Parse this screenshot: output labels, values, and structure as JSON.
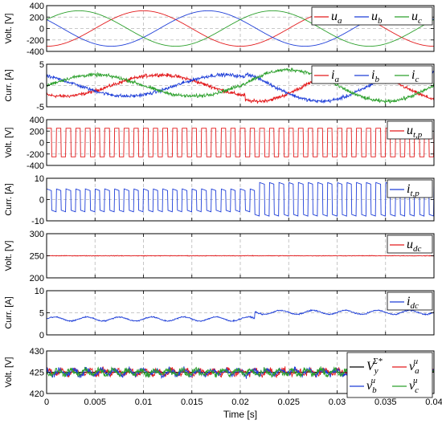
{
  "chart_data": [
    {
      "type": "line",
      "ylabel": "Volt. [V]",
      "ylim": [
        -400,
        400
      ],
      "yticks": [
        -400,
        -200,
        0,
        200,
        400
      ],
      "xlim": [
        0,
        0.04
      ],
      "grid": true,
      "legend": "top-right",
      "series": [
        {
          "name": "u",
          "sub": "a",
          "color": "#e31a1c",
          "kind": "sine",
          "amplitude": 310,
          "frequency_hz": 50,
          "phase_deg": -90
        },
        {
          "name": "u",
          "sub": "b",
          "color": "#1f3fd8",
          "kind": "sine",
          "amplitude": 310,
          "frequency_hz": 50,
          "phase_deg": 150
        },
        {
          "name": "u",
          "sub": "c",
          "color": "#2ca02c",
          "kind": "sine",
          "amplitude": 310,
          "frequency_hz": 50,
          "phase_deg": 30
        }
      ]
    },
    {
      "type": "line",
      "ylabel": "Curr. [A]",
      "ylim": [
        -5,
        5
      ],
      "yticks": [
        -5,
        0,
        5
      ],
      "xlim": [
        0,
        0.04
      ],
      "grid": true,
      "legend": "top-right",
      "step_time": 0.0205,
      "series": [
        {
          "name": "i",
          "sub": "a",
          "color": "#e31a1c",
          "kind": "sine",
          "amplitude_before": 2.5,
          "amplitude_after": 3.7,
          "frequency_hz": 50,
          "phase_deg": -120,
          "noise": 0.35
        },
        {
          "name": "i",
          "sub": "b",
          "color": "#1f3fd8",
          "kind": "sine",
          "amplitude_before": 2.5,
          "amplitude_after": 3.7,
          "frequency_hz": 50,
          "phase_deg": 120,
          "noise": 0.35
        },
        {
          "name": "i",
          "sub": "c",
          "color": "#2ca02c",
          "kind": "sine",
          "amplitude_before": 2.5,
          "amplitude_after": 3.7,
          "frequency_hz": 50,
          "phase_deg": 0,
          "noise": 0.35
        }
      ]
    },
    {
      "type": "line",
      "ylabel": "Volt. [V]",
      "ylim": [
        -400,
        400
      ],
      "yticks": [
        -400,
        -200,
        0,
        200,
        400
      ],
      "xlim": [
        0,
        0.04
      ],
      "grid": true,
      "legend": "top-right",
      "series": [
        {
          "name": "u",
          "sub": "t,p",
          "color": "#e31a1c",
          "kind": "square",
          "high": 250,
          "low": -250,
          "period": 0.001
        }
      ]
    },
    {
      "type": "line",
      "ylabel": "Curr. [A]",
      "ylim": [
        -10,
        10
      ],
      "yticks": [
        -10,
        0,
        10
      ],
      "xlim": [
        0,
        0.04
      ],
      "grid": true,
      "legend": "top-right",
      "step_time": 0.0215,
      "series": [
        {
          "name": "i",
          "sub": "t,p",
          "color": "#1f3fd8",
          "kind": "square",
          "period": 0.001,
          "high_before": 5,
          "low_before": -5,
          "high_after": 8,
          "low_after": -7
        }
      ]
    },
    {
      "type": "line",
      "ylabel": "Volt. [V]",
      "ylim": [
        200,
        300
      ],
      "yticks": [
        200,
        250,
        300
      ],
      "xlim": [
        0,
        0.04
      ],
      "grid": true,
      "legend": "top-right",
      "series": [
        {
          "name": "u",
          "sub": "dc",
          "color": "#e31a1c",
          "kind": "constant",
          "value": 250,
          "noise": 0.6
        }
      ]
    },
    {
      "type": "line",
      "ylabel": "Curr. [A]",
      "ylim": [
        0,
        10
      ],
      "yticks": [
        0,
        5,
        10
      ],
      "xlim": [
        0,
        0.04
      ],
      "grid": true,
      "legend": "top-right",
      "step_time": 0.0215,
      "series": [
        {
          "name": "i",
          "sub": "dc",
          "color": "#1f3fd8",
          "kind": "step_ripple",
          "value_before": 3.6,
          "value_after": 5.1,
          "ripple": 0.45,
          "ripple_hz": 300
        }
      ]
    },
    {
      "type": "line",
      "ylabel": "Volt. [V]",
      "xlabel": "Time [s]",
      "ylim": [
        420,
        430
      ],
      "yticks": [
        420,
        425,
        430
      ],
      "xlim": [
        0,
        0.04
      ],
      "xticks": [
        0,
        0.005,
        0.01,
        0.015,
        0.02,
        0.025,
        0.03,
        0.035,
        0.04
      ],
      "xticklabels": [
        "0",
        "0.005",
        "0.01",
        "0.015",
        "0.02",
        "0.025",
        "0.03",
        "0.035",
        "0.04"
      ],
      "grid": true,
      "legend": "top-right",
      "series": [
        {
          "name": "V",
          "sub": "y",
          "sup": "Σ*",
          "color": "#000000",
          "kind": "constant",
          "value": 425,
          "noise": 0
        },
        {
          "name": "v",
          "sub": "a",
          "sup": "u",
          "color": "#e31a1c",
          "kind": "noise",
          "value": 425,
          "noise": 1.0
        },
        {
          "name": "v",
          "sub": "b",
          "sup": "u",
          "color": "#1f3fd8",
          "kind": "noise",
          "value": 425,
          "noise": 1.0
        },
        {
          "name": "v",
          "sub": "c",
          "sup": "u",
          "color": "#2ca02c",
          "kind": "noise",
          "value": 425,
          "noise": 1.0
        }
      ]
    }
  ]
}
